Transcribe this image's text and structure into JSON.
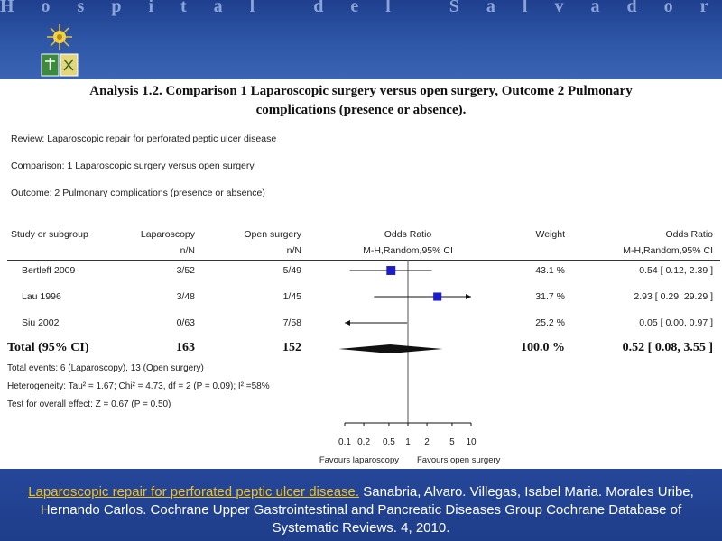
{
  "header": {
    "hospital_name": "Hospital del Salvador"
  },
  "analysis": {
    "title_line1": "Analysis 1.2.   Comparison 1 Laparoscopic surgery versus open surgery, Outcome 2 Pulmonary",
    "title_line2": "complications (presence or absence).",
    "review": "Review:   Laparoscopic repair for perforated peptic ulcer disease",
    "comparison": "Comparison:   1 Laparoscopic surgery versus open surgery",
    "outcome": "Outcome:   2 Pulmonary complications (presence or absence)"
  },
  "table": {
    "columns": {
      "study": "Study or subgroup",
      "lap": "Laparoscopy",
      "lap_sub": "n/N",
      "open": "Open surgery",
      "open_sub": "n/N",
      "or": "Odds Ratio",
      "or_sub": "M-H,Random,95% CI",
      "weight": "Weight",
      "or2": "Odds Ratio",
      "or2_sub": "M-H,Random,95% CI"
    },
    "rows": [
      {
        "study": "Bertleff 2009",
        "lap": "3/52",
        "open": "5/49",
        "weight": "43.1 %",
        "ci_text": "0.54 [ 0.12, 2.39 ]"
      },
      {
        "study": "Lau 1996",
        "lap": "3/48",
        "open": "1/45",
        "weight": "31.7 %",
        "ci_text": "2.93 [ 0.29, 29.29 ]"
      },
      {
        "study": "Siu 2002",
        "lap": "0/63",
        "open": "7/58",
        "weight": "25.2 %",
        "ci_text": "0.05 [ 0.00, 0.97 ]"
      }
    ],
    "total": {
      "label": "Total (95% CI)",
      "lap": "163",
      "open": "152",
      "weight": "100.0 %",
      "ci_text": "0.52 [ 0.08, 3.55 ]"
    },
    "total_events": "Total events: 6 (Laparoscopy), 13 (Open surgery)",
    "heterogeneity": "Heterogeneity: Tau² = 1.67; Chi² = 4.73, df = 2 (P = 0.09); I² =58%",
    "overall_effect": "Test for overall effect: Z = 0.67 (P = 0.50)"
  },
  "chart_data": {
    "type": "forest",
    "scale": "log",
    "xlim": [
      0.1,
      10
    ],
    "x_ticks": [
      "0.1",
      "0.2",
      "0.5",
      "1",
      "2",
      "5",
      "10"
    ],
    "x_tick_values": [
      0.1,
      0.2,
      0.5,
      1,
      2,
      5,
      10
    ],
    "left_label": "Favours laparoscopy",
    "right_label": "Favours open surgery",
    "studies": [
      {
        "name": "Bertleff 2009",
        "or": 0.54,
        "lower": 0.12,
        "upper": 2.39,
        "weight": 43.1
      },
      {
        "name": "Lau 1996",
        "or": 2.93,
        "lower": 0.29,
        "upper": 29.29,
        "weight": 31.7
      },
      {
        "name": "Siu 2002",
        "or": 0.05,
        "lower": 0.0,
        "upper": 0.97,
        "weight": 25.2
      }
    ],
    "pooled": {
      "or": 0.52,
      "lower": 0.08,
      "upper": 3.55
    },
    "colors": {
      "marker": "#1c1cc8",
      "line": "#111111"
    }
  },
  "footer": {
    "link_text": "Laparoscopic repair for perforated peptic ulcer disease.",
    "citation_text": " Sanabria, Alvaro. Villegas, Isabel Maria. Morales Uribe, Hernando Carlos. Cochrane Upper Gastrointestinal and Pancreatic Diseases Group Cochrane Database of Systematic Reviews. 4, 2010.",
    "link_color": "#f0c020"
  }
}
